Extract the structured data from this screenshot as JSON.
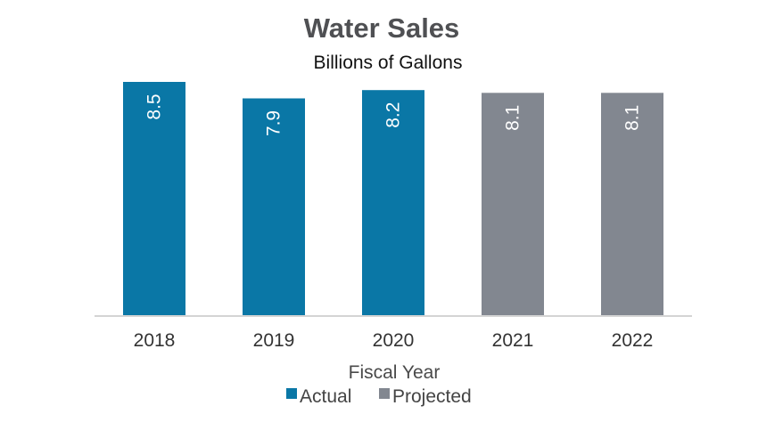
{
  "chart_data": {
    "type": "bar",
    "title": "Water Sales",
    "subtitle": "Billions of Gallons",
    "xlabel": "Fiscal Year",
    "ylabel": "",
    "categories": [
      "2018",
      "2019",
      "2020",
      "2021",
      "2022"
    ],
    "values": [
      8.5,
      7.9,
      8.2,
      8.1,
      8.1
    ],
    "value_labels": [
      "8.5",
      "7.9",
      "8.2",
      "8.1",
      "8.1"
    ],
    "bar_status": [
      "actual",
      "actual",
      "actual",
      "projected",
      "projected"
    ],
    "ylim": [
      0,
      8.5
    ],
    "grid": false,
    "data_label_orientation": "rotated",
    "legend": {
      "placement": "bottom",
      "items": [
        {
          "key": "actual",
          "label": "Actual",
          "color": "#0a77a6"
        },
        {
          "key": "projected",
          "label": "Projected",
          "color": "#828790"
        }
      ]
    },
    "colors": {
      "actual": "#0a77a6",
      "projected": "#828790",
      "axis": "#d4d4d4"
    }
  }
}
